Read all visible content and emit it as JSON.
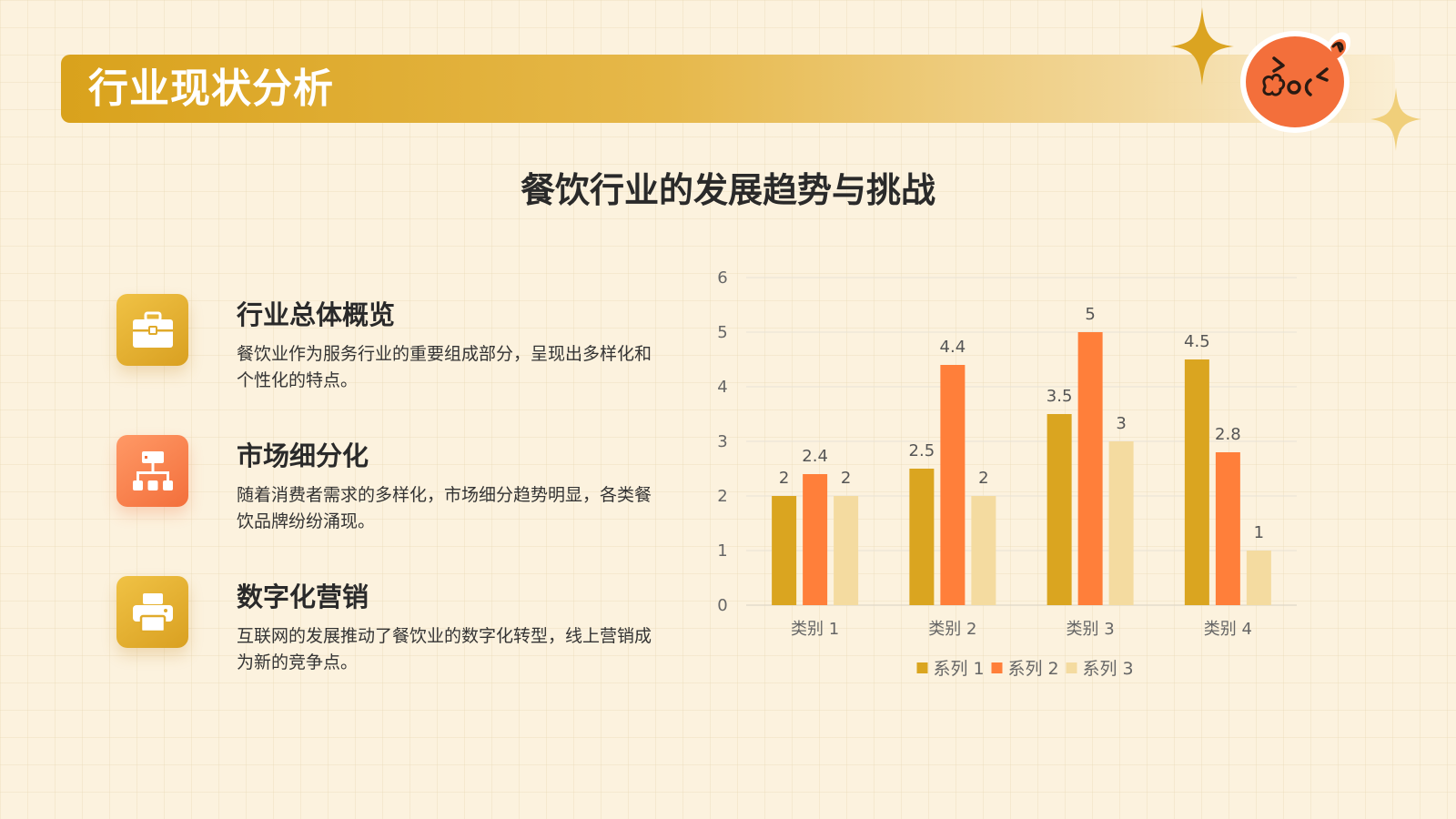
{
  "header": {
    "title": "行业现状分析"
  },
  "subtitle": "餐饮行业的发展趋势与挑战",
  "features": [
    {
      "icon": "briefcase-icon",
      "title": "行业总体概览",
      "body": "餐饮业作为服务行业的重要组成部分，呈现出多样化和个性化的特点。"
    },
    {
      "icon": "sitemap-icon",
      "title": "市场细分化",
      "body": "随着消费者需求的多样化，市场细分趋势明显，各类餐饮品牌纷纷涌现。"
    },
    {
      "icon": "printer-icon",
      "title": "数字化营销",
      "body": "互联网的发展推动了餐饮业的数字化转型，线上营销成为新的竞争点。"
    }
  ],
  "colors": {
    "gold": "#daa520",
    "orange": "#ff7f3a",
    "cream": "#f4dba0",
    "accent_orange": "#f36f3b"
  },
  "chart_data": {
    "type": "bar",
    "categories": [
      "类别 1",
      "类别 2",
      "类别 3",
      "类别 4"
    ],
    "series": [
      {
        "name": "系列 1",
        "values": [
          2,
          2.5,
          3.5,
          4.5
        ],
        "color": "#daa520"
      },
      {
        "name": "系列 2",
        "values": [
          2.4,
          4.4,
          5,
          2.8
        ],
        "color": "#ff7f3a"
      },
      {
        "name": "系列 3",
        "values": [
          2,
          2,
          3,
          1
        ],
        "color": "#f4dba0"
      }
    ],
    "yticks": [
      "0",
      "1",
      "2",
      "3",
      "4",
      "5",
      "6"
    ],
    "ylim": [
      0,
      6
    ],
    "grid": true,
    "legend": "bottom",
    "data_labels": true
  }
}
